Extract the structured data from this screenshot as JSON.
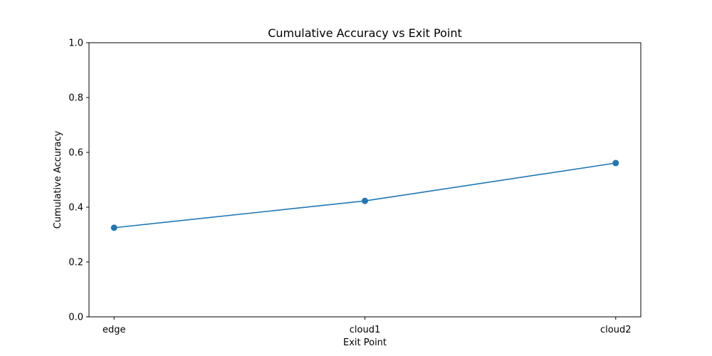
{
  "chart_data": {
    "type": "line",
    "title": "Cumulative Accuracy vs Exit Point",
    "xlabel": "Exit Point",
    "ylabel": "Cumulative Accuracy",
    "categories": [
      "edge",
      "cloud1",
      "cloud2"
    ],
    "series": [
      {
        "values": [
          0.325,
          0.423,
          0.561
        ],
        "color": "#1f77b4",
        "marker": "circle"
      }
    ],
    "ylim": [
      0,
      1.0
    ],
    "yticks": [
      "0.0",
      "0.2",
      "0.4",
      "0.6",
      "0.8",
      "1.0"
    ],
    "grid": false,
    "legend": "none"
  }
}
